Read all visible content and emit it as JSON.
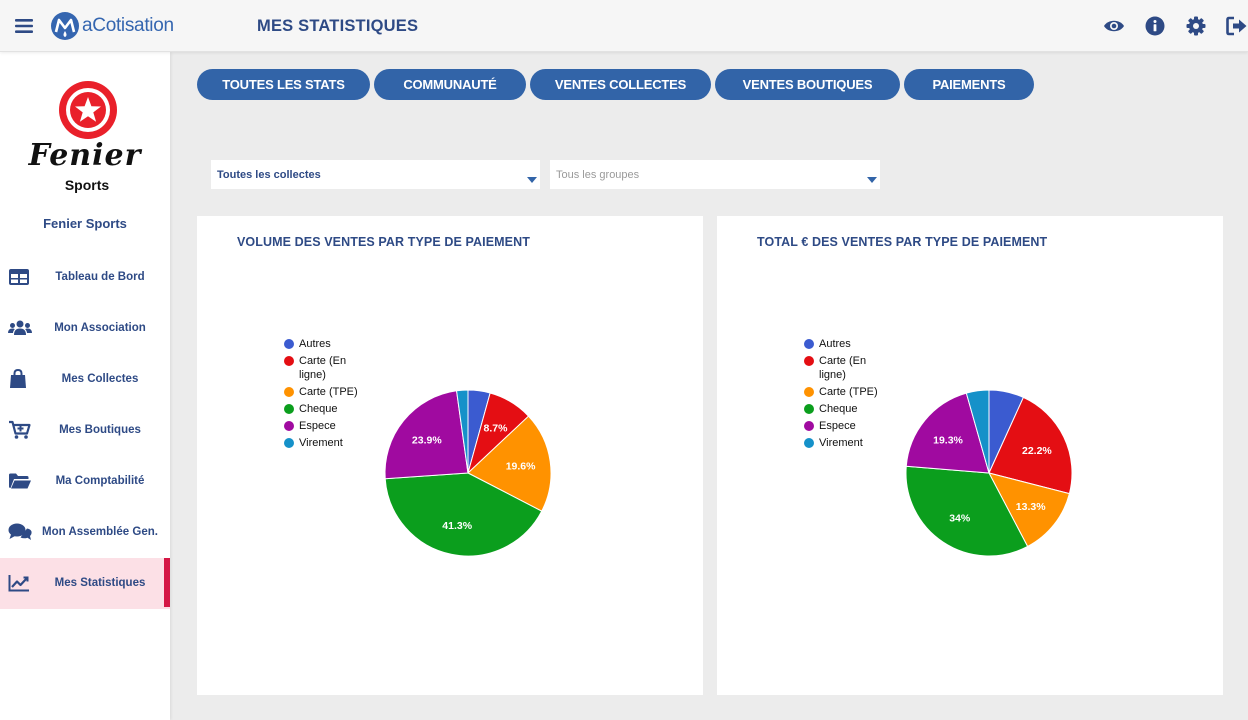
{
  "header": {
    "brand_name": "aCotisation",
    "title": "MES STATISTIQUES",
    "icons": [
      "eye-icon",
      "info-icon",
      "gear-icon",
      "logout-icon"
    ]
  },
  "sidebar": {
    "org_logo_name": "Fenier",
    "org_logo_sub": "Sports",
    "org_name": "Fenier Sports",
    "items": [
      {
        "label": "Tableau de Bord",
        "icon": "dashboard-icon"
      },
      {
        "label": "Mon Association",
        "icon": "users-icon"
      },
      {
        "label": "Mes Collectes",
        "icon": "bag-icon"
      },
      {
        "label": "Mes Boutiques",
        "icon": "cart-icon"
      },
      {
        "label": "Ma Comptabilité",
        "icon": "folder-icon"
      },
      {
        "label": "Mon Assemblée Gen.",
        "icon": "chat-icon"
      },
      {
        "label": "Mes Statistiques",
        "icon": "chart-icon",
        "active": true
      }
    ]
  },
  "tabs": [
    "TOUTES LES STATS",
    "COMMUNAUTÉ",
    "VENTES COLLECTES",
    "VENTES BOUTIQUES",
    "PAIEMENTS"
  ],
  "filters": {
    "collectes": {
      "value": "Toutes les collectes"
    },
    "groupes": {
      "placeholder": "Tous les groupes"
    }
  },
  "colors": {
    "accent": "#3264a8",
    "active_bg": "#fce0e6",
    "active_bar": "#d51745"
  },
  "chart_data": [
    {
      "type": "pie",
      "title": "VOLUME DES VENTES PAR TYPE DE PAIEMENT",
      "legend_position": "left",
      "slices": [
        {
          "label": "Autres",
          "value": 4.3,
          "color": "#3b5bd0",
          "data_label": ""
        },
        {
          "label": "Carte (En ligne)",
          "value": 8.7,
          "color": "#e40e13",
          "data_label": "8.7%"
        },
        {
          "label": "Carte (TPE)",
          "value": 19.6,
          "color": "#ff9200",
          "data_label": "19.6%"
        },
        {
          "label": "Cheque",
          "value": 41.3,
          "color": "#0b9e1d",
          "data_label": "41.3%"
        },
        {
          "label": "Espece",
          "value": 23.9,
          "color": "#a00aa0",
          "data_label": "23.9%"
        },
        {
          "label": "Virement",
          "value": 2.2,
          "color": "#1591c9",
          "data_label": ""
        }
      ]
    },
    {
      "type": "pie",
      "title": "TOTAL € DES VENTES PAR TYPE DE PAIEMENT",
      "legend_position": "left",
      "slices": [
        {
          "label": "Autres",
          "value": 6.8,
          "color": "#3b5bd0",
          "data_label": ""
        },
        {
          "label": "Carte (En ligne)",
          "value": 22.2,
          "color": "#e40e13",
          "data_label": "22.2%"
        },
        {
          "label": "Carte (TPE)",
          "value": 13.3,
          "color": "#ff9200",
          "data_label": "13.3%"
        },
        {
          "label": "Cheque",
          "value": 34,
          "color": "#0b9e1d",
          "data_label": "34%"
        },
        {
          "label": "Espece",
          "value": 19.3,
          "color": "#a00aa0",
          "data_label": "19.3%"
        },
        {
          "label": "Virement",
          "value": 4.4,
          "color": "#1591c9",
          "data_label": ""
        }
      ]
    }
  ]
}
